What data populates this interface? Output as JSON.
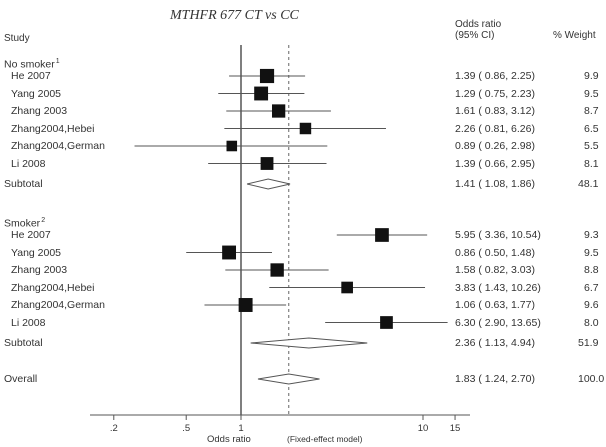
{
  "chart_data": {
    "type": "forest",
    "title": "MTHFR 677 CT vs CC",
    "column_headers": {
      "study": "Study",
      "odds_ratio_line1": "Odds ratio",
      "odds_ratio_line2": "(95% CI)",
      "weight": "% Weight"
    },
    "x_scale": "log",
    "xlim": [
      0.1,
      20
    ],
    "x_ticks": [
      {
        "value": 0.2,
        "label": ".2"
      },
      {
        "value": 0.5,
        "label": ".5"
      },
      {
        "value": 1,
        "label": "1"
      },
      {
        "value": 10,
        "label": "10"
      },
      {
        "value": 15,
        "label": "15"
      }
    ],
    "xlabel": "Odds ratio",
    "xlabel_note": "(Fixed-effect model)",
    "null_line": 1,
    "overall_line": 1.83,
    "groups": [
      {
        "name": "No smoker",
        "superscript": "1",
        "studies": [
          {
            "study": "He 2007",
            "or": 1.39,
            "lower": 0.86,
            "upper": 2.25,
            "ci_text": "1.39 ( 0.86, 2.25)",
            "weight": "9.9"
          },
          {
            "study": "Yang 2005",
            "or": 1.29,
            "lower": 0.75,
            "upper": 2.23,
            "ci_text": "1.29 ( 0.75, 2.23)",
            "weight": "9.5"
          },
          {
            "study": "Zhang 2003",
            "or": 1.61,
            "lower": 0.83,
            "upper": 3.12,
            "ci_text": "1.61 ( 0.83, 3.12)",
            "weight": "8.7"
          },
          {
            "study": "Zhang2004,Hebei",
            "or": 2.26,
            "lower": 0.81,
            "upper": 6.26,
            "ci_text": "2.26 ( 0.81, 6.26)",
            "weight": "6.5"
          },
          {
            "study": "Zhang2004,German",
            "or": 0.89,
            "lower": 0.26,
            "upper": 2.98,
            "ci_text": "0.89 ( 0.26, 2.98)",
            "weight": "5.5"
          },
          {
            "study": "Li 2008",
            "or": 1.39,
            "lower": 0.66,
            "upper": 2.95,
            "ci_text": "1.39 ( 0.66, 2.95)",
            "weight": "8.1"
          }
        ],
        "subtotal": {
          "label": "Subtotal",
          "or": 1.41,
          "lower": 1.08,
          "upper": 1.86,
          "ci_text": "1.41 ( 1.08, 1.86)",
          "weight": "48.1"
        }
      },
      {
        "name": "Smoker",
        "superscript": "2",
        "studies": [
          {
            "study": "He 2007",
            "or": 5.95,
            "lower": 3.36,
            "upper": 10.54,
            "ci_text": "5.95 ( 3.36, 10.54)",
            "weight": "9.3"
          },
          {
            "study": "Yang 2005",
            "or": 0.86,
            "lower": 0.5,
            "upper": 1.48,
            "ci_text": "0.86 ( 0.50, 1.48)",
            "weight": "9.5"
          },
          {
            "study": "Zhang 2003",
            "or": 1.58,
            "lower": 0.82,
            "upper": 3.03,
            "ci_text": "1.58 ( 0.82, 3.03)",
            "weight": "8.8"
          },
          {
            "study": "Zhang2004,Hebei",
            "or": 3.83,
            "lower": 1.43,
            "upper": 10.26,
            "ci_text": "3.83 ( 1.43, 10.26)",
            "weight": "6.7"
          },
          {
            "study": "Zhang2004,German",
            "or": 1.06,
            "lower": 0.63,
            "upper": 1.77,
            "ci_text": "1.06 ( 0.63, 1.77)",
            "weight": "9.6"
          },
          {
            "study": "Li 2008",
            "or": 6.3,
            "lower": 2.9,
            "upper": 13.65,
            "ci_text": "6.30 ( 2.90, 13.65)",
            "weight": "8.0"
          }
        ],
        "subtotal": {
          "label": "Subtotal",
          "or": 2.36,
          "lower": 1.13,
          "upper": 4.94,
          "ci_text": "2.36 ( 1.13, 4.94)",
          "weight": "51.9"
        }
      }
    ],
    "overall": {
      "label": "Overall",
      "or": 1.83,
      "lower": 1.24,
      "upper": 2.7,
      "ci_text": "1.83 ( 1.24, 2.70)",
      "weight": "100.0"
    }
  }
}
